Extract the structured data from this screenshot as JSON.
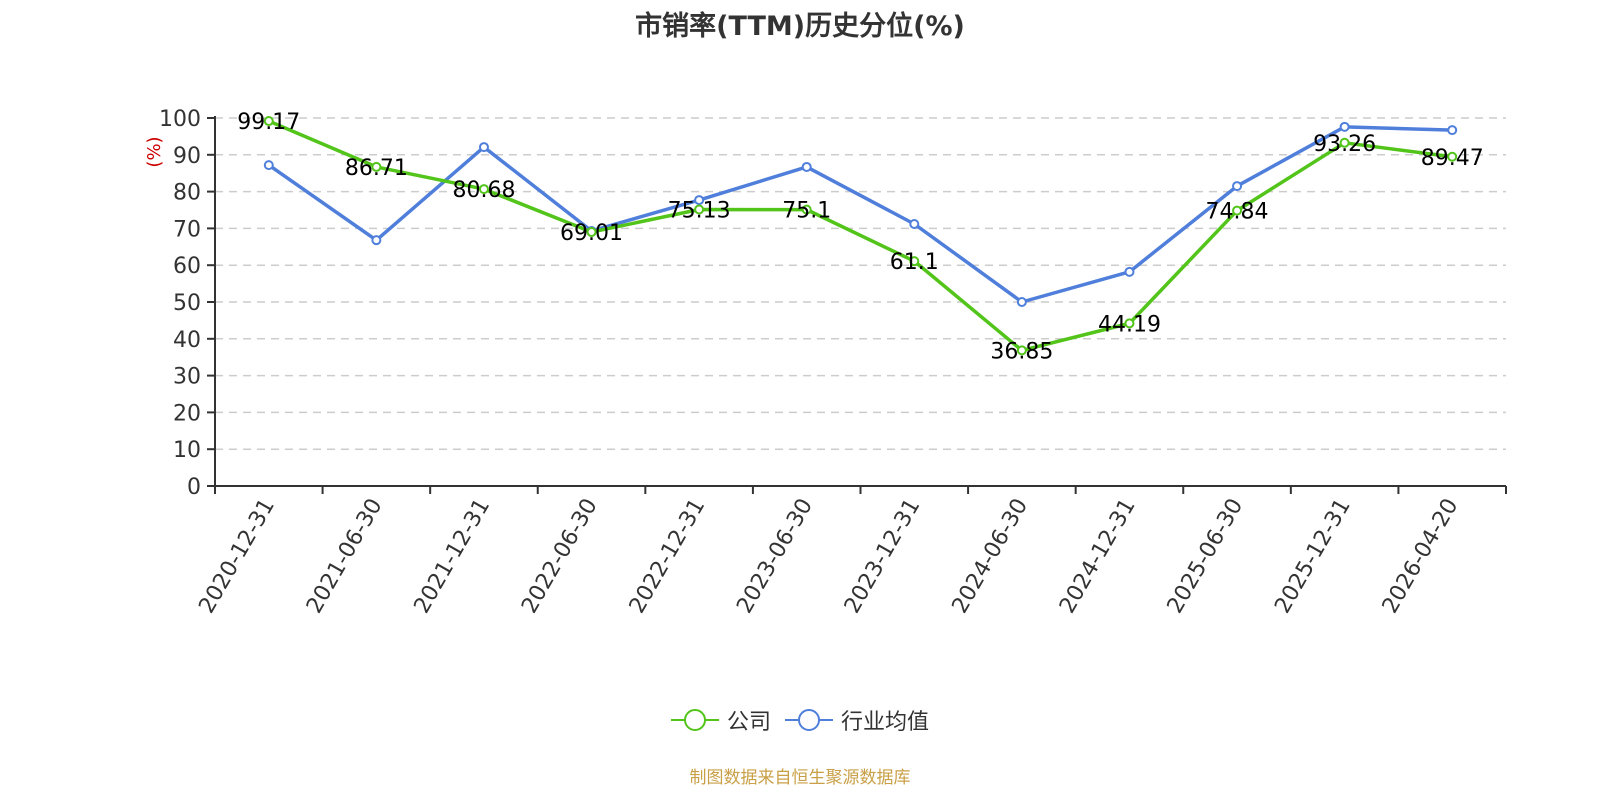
{
  "title": "市销率(TTM)历史分位(%)",
  "source_note": "制图数据来自恒生聚源数据库",
  "colors": {
    "company": "#52c41a",
    "industry": "#4f7fdb",
    "axis": "#333333",
    "grid": "#cccccc",
    "ylabel": "#cc0000",
    "source": "#c9a047"
  },
  "legend": [
    {
      "name": "公司",
      "color": "#52c41a"
    },
    {
      "name": "行业均值",
      "color": "#4f7fdb"
    }
  ],
  "chart_data": {
    "type": "line",
    "title": "市销率(TTM)历史分位(%)",
    "xlabel": "",
    "ylabel": "(%)",
    "ylim": [
      0,
      100
    ],
    "yticks": [
      0,
      10,
      20,
      30,
      40,
      50,
      60,
      70,
      80,
      90,
      100
    ],
    "grid": true,
    "legend_position": "bottom",
    "categories": [
      "2020-12-31",
      "2021-06-30",
      "2021-12-31",
      "2022-06-30",
      "2022-12-31",
      "2023-06-30",
      "2023-12-31",
      "2024-06-30",
      "2024-12-31",
      "2025-06-30",
      "2025-12-31",
      "2026-04-20"
    ],
    "series": [
      {
        "name": "公司",
        "color": "#52c41a",
        "show_labels": true,
        "values": [
          99.17,
          86.71,
          80.68,
          69.01,
          75.13,
          75.1,
          61.1,
          36.85,
          44.19,
          74.84,
          93.26,
          89.47
        ]
      },
      {
        "name": "行业均值",
        "color": "#4f7fdb",
        "show_labels": false,
        "values": [
          87.2,
          66.8,
          92.1,
          69.3,
          77.7,
          86.7,
          71.2,
          50.0,
          58.2,
          81.5,
          97.6,
          96.7
        ]
      }
    ]
  }
}
